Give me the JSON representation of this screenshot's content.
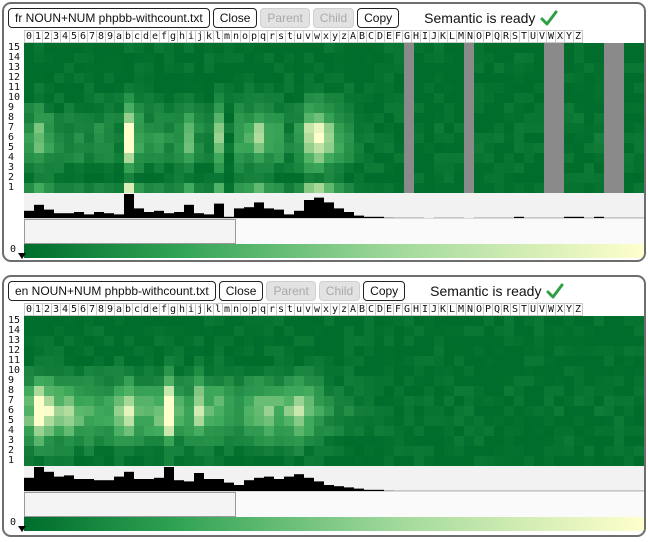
{
  "panels": [
    {
      "file_label": "fr NOUN+NUM phpbb-withcount.txt",
      "buttons": {
        "close": "Close",
        "parent": "Parent",
        "child": "Child",
        "copy": "Copy"
      },
      "status": "Semantic is ready",
      "zero_label": "0",
      "row_labels": [
        "15",
        "14",
        "13",
        "12",
        "11",
        "10",
        "9",
        "8",
        "7",
        "6",
        "5",
        "4",
        "3",
        "2",
        "1"
      ],
      "col_labels": [
        "0",
        "1",
        "2",
        "3",
        "4",
        "5",
        "6",
        "7",
        "8",
        "9",
        "a",
        "b",
        "c",
        "d",
        "e",
        "f",
        "g",
        "h",
        "i",
        "j",
        "k",
        "l",
        "m",
        "n",
        "o",
        "p",
        "q",
        "r",
        "s",
        "t",
        "u",
        "v",
        "w",
        "x",
        "y",
        "z",
        "A",
        "B",
        "C",
        "D",
        "E",
        "F",
        "G",
        "H",
        "I",
        "J",
        "K",
        "L",
        "M",
        "N",
        "O",
        "P",
        "Q",
        "R",
        "S",
        "T",
        "U",
        "V",
        "W",
        "X",
        "Y",
        "Z"
      ],
      "gray_columns": [
        "C",
        "I",
        "Q",
        "R",
        "W",
        "X"
      ],
      "histogram": [
        0.3,
        0.55,
        0.35,
        0.2,
        0.2,
        0.25,
        0.15,
        0.25,
        0.2,
        0.15,
        1.0,
        0.4,
        0.25,
        0.3,
        0.2,
        0.25,
        0.55,
        0.2,
        0.15,
        0.6,
        0.05,
        0.4,
        0.45,
        0.65,
        0.4,
        0.35,
        0.15,
        0.3,
        0.75,
        0.85,
        0.65,
        0.4,
        0.25,
        0.1,
        0.05,
        0.05,
        0.03,
        0.02,
        0.02,
        0.02,
        0.0,
        0.02,
        0.02,
        0.02,
        0.0,
        0.02,
        0.02,
        0.02,
        0.02,
        0.05,
        0.02,
        0.02,
        0.02,
        0.02,
        0.05,
        0.05,
        0.02,
        0.05,
        0.02,
        0.02,
        0.02,
        0.02
      ]
    },
    {
      "file_label": "en NOUN+NUM phpbb-withcount.txt",
      "buttons": {
        "close": "Close",
        "parent": "Parent",
        "child": "Child",
        "copy": "Copy"
      },
      "status": "Semantic is ready",
      "zero_label": "0",
      "row_labels": [
        "15",
        "14",
        "13",
        "12",
        "11",
        "10",
        "9",
        "8",
        "7",
        "6",
        "5",
        "4",
        "3",
        "2",
        "1"
      ],
      "col_labels": [
        "0",
        "1",
        "2",
        "3",
        "4",
        "5",
        "6",
        "7",
        "8",
        "9",
        "a",
        "b",
        "c",
        "d",
        "e",
        "f",
        "g",
        "h",
        "i",
        "j",
        "k",
        "l",
        "m",
        "n",
        "o",
        "p",
        "q",
        "r",
        "s",
        "t",
        "u",
        "v",
        "w",
        "x",
        "y",
        "z",
        "A",
        "B",
        "C",
        "D",
        "E",
        "F",
        "G",
        "H",
        "I",
        "J",
        "K",
        "L",
        "M",
        "N",
        "O",
        "P",
        "Q",
        "R",
        "S",
        "T",
        "U",
        "V",
        "W",
        "X",
        "Y",
        "Z"
      ],
      "gray_columns": [],
      "histogram": [
        0.55,
        1.0,
        0.8,
        0.6,
        0.65,
        0.5,
        0.5,
        0.45,
        0.45,
        0.6,
        0.8,
        0.5,
        0.5,
        0.55,
        1.0,
        0.45,
        0.4,
        0.75,
        0.5,
        0.5,
        0.35,
        0.25,
        0.45,
        0.55,
        0.6,
        0.5,
        0.6,
        0.7,
        0.55,
        0.4,
        0.25,
        0.2,
        0.15,
        0.1,
        0.05,
        0.05,
        0.03,
        0.02,
        0.02,
        0.02,
        0.02,
        0.02,
        0.02,
        0.02,
        0.02,
        0.02,
        0.02,
        0.02,
        0.02,
        0.02,
        0.02,
        0.02,
        0.02,
        0.02,
        0.02,
        0.02,
        0.02,
        0.02,
        0.02,
        0.02,
        0.02,
        0.02
      ]
    }
  ],
  "colors": {
    "heat_low": "#006d2c",
    "heat_mid": "#41ab5d",
    "heat_high": "#ffffcc",
    "gray_column": "#8a8a8a",
    "check_green": "#2ea043",
    "histogram_bar": "#000000"
  },
  "icons": {
    "status": "checkmark-icon",
    "legend_marker": "triangle-down-icon"
  }
}
